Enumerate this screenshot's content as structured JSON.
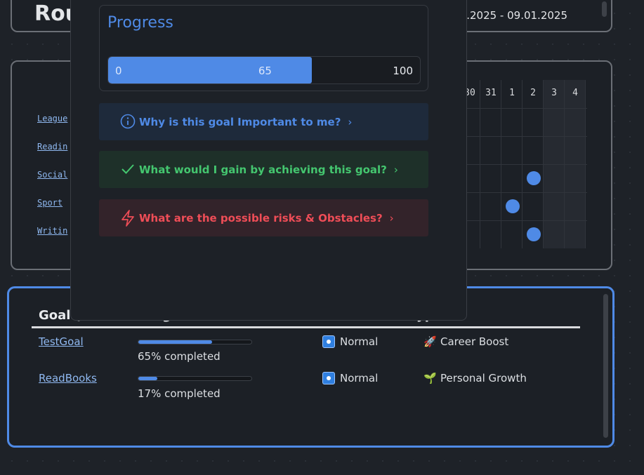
{
  "routine": {
    "title": "Rou",
    "date_range": "01.2025 - 09.01.2025"
  },
  "tracker": {
    "habits": [
      "League",
      "Readin",
      "Social",
      "Sport",
      "Writin"
    ],
    "columns": [
      {
        "label": "30",
        "weekend": false
      },
      {
        "label": "31",
        "weekend": false
      },
      {
        "label": "1",
        "weekend": false
      },
      {
        "label": "2",
        "weekend": false
      },
      {
        "label": "3",
        "weekend": true
      },
      {
        "label": "4",
        "weekend": true
      }
    ],
    "checks": [
      {
        "habit": "Social",
        "day": "2"
      },
      {
        "habit": "Sport",
        "day": "1"
      },
      {
        "habit": "Writin",
        "day": "2"
      }
    ],
    "dot_color": "#4f8ae6"
  },
  "goals": {
    "header_goal": "Goal (",
    "header_visible_partial": "g",
    "header_type_partial": "yp",
    "rows": [
      {
        "name": "TestGoal",
        "progress": 65,
        "progress_text": "65% completed",
        "priority": "Normal",
        "type_emoji": "🚀",
        "type": "Career Boost"
      },
      {
        "name": "ReadBooks",
        "progress": 17,
        "progress_text": "17% completed",
        "priority": "Normal",
        "type_emoji": "🌱",
        "type": "Personal Growth"
      }
    ]
  },
  "modal": {
    "progress_title": "Progress",
    "progress_min": "0",
    "progress_value": 65,
    "progress_value_label": "65",
    "progress_max": "100",
    "callouts": {
      "why": {
        "icon": "info-icon",
        "label": "Why is this goal Important to me?",
        "chevron": "›",
        "color": "#4f8ae6"
      },
      "gain": {
        "icon": "check-icon",
        "label": "What would I gain by achieving this goal?",
        "chevron": "›",
        "color": "#44c66f"
      },
      "risk": {
        "icon": "lightning-icon",
        "label": "What are the possible risks & Obstacles?",
        "chevron": "›",
        "color": "#ef4d57"
      }
    }
  }
}
